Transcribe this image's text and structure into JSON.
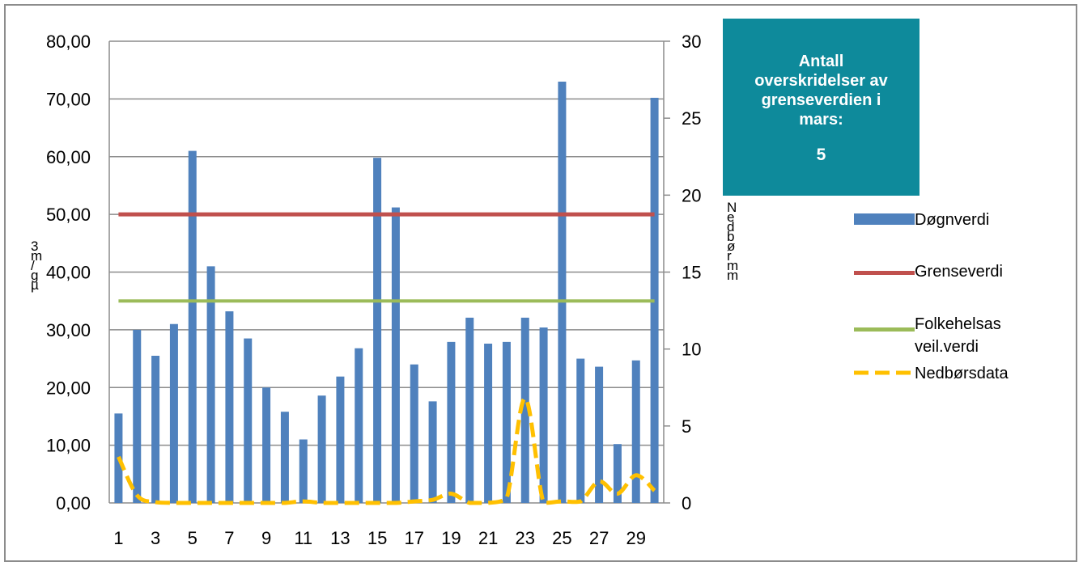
{
  "chart_data": {
    "type": "bar",
    "categories": [
      "1",
      "2",
      "3",
      "4",
      "5",
      "6",
      "7",
      "8",
      "9",
      "10",
      "11",
      "12",
      "13",
      "14",
      "15",
      "16",
      "17",
      "18",
      "19",
      "20",
      "21",
      "22",
      "23",
      "24",
      "25",
      "26",
      "27",
      "28",
      "29",
      "30"
    ],
    "x_tick_labels": [
      "1",
      "3",
      "5",
      "7",
      "9",
      "11",
      "13",
      "15",
      "17",
      "19",
      "21",
      "23",
      "25",
      "27",
      "29"
    ],
    "series": [
      {
        "name": "Døgnverdi",
        "kind": "bar",
        "axis": "left",
        "color": "#4f81bd",
        "values": [
          15.5,
          30.0,
          25.5,
          31.0,
          61.0,
          41.0,
          33.2,
          28.5,
          20.0,
          15.8,
          11.0,
          18.6,
          21.9,
          26.8,
          59.8,
          51.2,
          24.0,
          17.6,
          27.9,
          32.1,
          27.6,
          27.9,
          32.1,
          30.4,
          73.0,
          25.0,
          23.6,
          10.2,
          24.7,
          70.2
        ]
      },
      {
        "name": "Grenseverdi",
        "kind": "line",
        "axis": "left",
        "color": "#c0504d",
        "value": 50
      },
      {
        "name": "Folkehelsas veil.verdi",
        "kind": "line",
        "axis": "left",
        "color": "#9bbb59",
        "value": 35
      },
      {
        "name": "Nedbørsdata",
        "kind": "dashed-line",
        "axis": "right",
        "color": "#ffc000",
        "values": [
          3.0,
          0.5,
          0.05,
          0.0,
          0.0,
          0.0,
          0.0,
          0.0,
          0.0,
          0.0,
          0.1,
          0.0,
          0.0,
          0.0,
          0.0,
          0.0,
          0.1,
          0.2,
          0.6,
          0.0,
          0.0,
          0.3,
          6.8,
          0.0,
          0.1,
          0.1,
          1.4,
          0.6,
          1.8,
          0.8
        ]
      }
    ],
    "y_left": {
      "label": "µg/m3",
      "ylim": [
        0,
        80
      ],
      "ticks": [
        "0,00",
        "10,00",
        "20,00",
        "30,00",
        "40,00",
        "50,00",
        "60,00",
        "70,00",
        "80,00"
      ]
    },
    "y_right": {
      "label": "Nedbør mm",
      "ylim": [
        0,
        30
      ],
      "ticks": [
        "0",
        "5",
        "10",
        "15",
        "20",
        "25",
        "30"
      ]
    },
    "grid": "horizontal",
    "legend_position": "right"
  },
  "info_box": {
    "line1": "Antall",
    "line2": "overskridelser av",
    "line3": "grenseverdien i",
    "line4": "mars:",
    "count": "5"
  },
  "legend": {
    "bar_label": "Døgnverdi",
    "limit_label": "Grenseverdi",
    "advisory_label_1": "Folkehelsas",
    "advisory_label_2": "veil.verdi",
    "rain_label": "Nedbørsdata"
  },
  "colors": {
    "info_box": "#0e8a9b",
    "bars": "#4f81bd",
    "limit": "#c0504d",
    "advisory": "#9bbb59",
    "rain": "#ffc000"
  }
}
